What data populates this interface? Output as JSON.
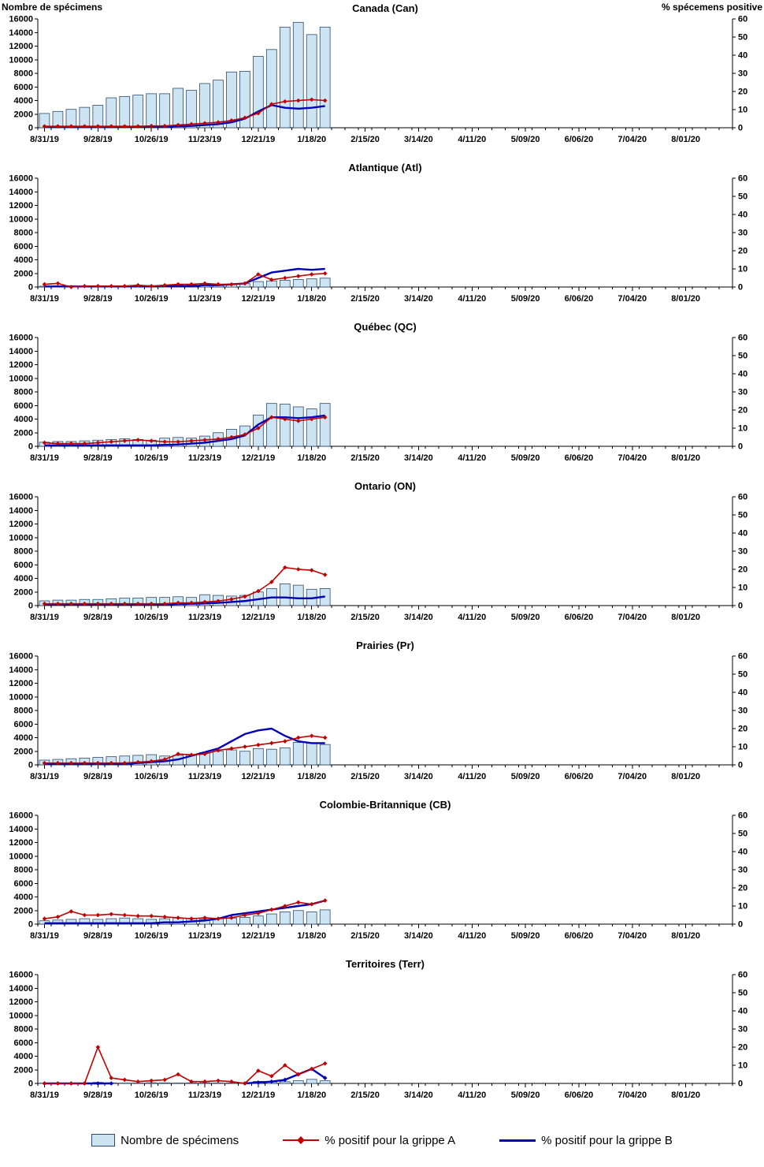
{
  "page": {
    "left_axis_header": "Nombre de spécimens",
    "right_axis_header": "% spécemens positive"
  },
  "legend": {
    "specimens": "Nombre de spécimens",
    "flu_a": "% positif pour la grippe A",
    "flu_b": "% positif pour la grippe B"
  },
  "colors": {
    "bar_fill": "#CDE4F3",
    "bar_border": "#2E4B6E",
    "flu_a_line": "#C00000",
    "flu_b_line": "#0000B8"
  },
  "axes": {
    "y_left_ticks": [
      0,
      2000,
      4000,
      6000,
      8000,
      10000,
      12000,
      14000,
      16000
    ],
    "y_right_ticks": [
      0,
      10,
      20,
      30,
      40,
      50,
      60
    ],
    "x_labels": [
      "8/31/19",
      "9/28/19",
      "10/26/19",
      "11/23/19",
      "12/21/19",
      "1/18/20",
      "2/15/20",
      "3/14/20",
      "4/11/20",
      "5/09/20",
      "6/06/20",
      "7/04/20",
      "8/01/20"
    ],
    "weeks_total": 52,
    "label_every": 4
  },
  "chart_data": [
    {
      "type": "bar+line",
      "id": "can",
      "title": "Canada (Can)",
      "y_left_max": 16000,
      "y_right_max": 60,
      "specimens": [
        2100,
        2400,
        2700,
        3000,
        3300,
        4400,
        4600,
        4800,
        5000,
        5000,
        5800,
        5500,
        6500,
        7000,
        8200,
        8300,
        10500,
        11500,
        14800,
        15500,
        13700,
        14800
      ],
      "pct_flu_a": [
        0.8,
        0.8,
        0.8,
        0.8,
        0.8,
        0.8,
        0.8,
        0.8,
        1,
        1,
        1.5,
        2,
        2.5,
        3,
        4,
        5.5,
        8,
        13,
        14.5,
        15,
        15.5,
        15
      ],
      "pct_flu_b": [
        0.5,
        0.4,
        0.4,
        0.4,
        0.4,
        0.4,
        0.5,
        0.5,
        0.5,
        0.6,
        0.8,
        1,
        1.5,
        2,
        3,
        5,
        9,
        12.5,
        11,
        10.5,
        11,
        12
      ]
    },
    {
      "type": "bar+line",
      "id": "atl",
      "title": "Atlantique (Atl)",
      "y_left_max": 16000,
      "y_right_max": 60,
      "specimens": [
        120,
        150,
        120,
        100,
        90,
        100,
        120,
        150,
        200,
        250,
        300,
        300,
        350,
        400,
        420,
        500,
        800,
        900,
        1000,
        1100,
        1200,
        1300
      ],
      "pct_flu_a": [
        1.5,
        2,
        0,
        0.5,
        0.5,
        0.5,
        0.5,
        1,
        0.5,
        1,
        1.5,
        1.5,
        2,
        1.5,
        1.5,
        2,
        7,
        4,
        5,
        6,
        7,
        7.5
      ],
      "pct_flu_b": [
        0.3,
        0.3,
        0.3,
        0.3,
        0.3,
        0.3,
        0.3,
        0.3,
        0.3,
        0.5,
        0.5,
        0.5,
        1,
        1,
        1.5,
        2,
        5,
        8,
        9,
        10,
        9.5,
        10
      ]
    },
    {
      "type": "bar+line",
      "id": "qc",
      "title": "Québec (QC)",
      "y_left_max": 16000,
      "y_right_max": 60,
      "specimens": [
        600,
        700,
        700,
        800,
        900,
        1000,
        1100,
        1000,
        900,
        1200,
        1300,
        1200,
        1500,
        2000,
        2500,
        3000,
        4600,
        6300,
        6200,
        5800,
        5500,
        6300
      ],
      "pct_flu_a": [
        2,
        1.5,
        1.5,
        1.5,
        2,
        2.5,
        3,
        3.5,
        3,
        2.5,
        2.5,
        3,
        3.5,
        4,
        5,
        6.5,
        10,
        16,
        15,
        14,
        15,
        16
      ],
      "pct_flu_b": [
        0.5,
        0.5,
        0.5,
        0.5,
        0.5,
        0.5,
        0.5,
        0.5,
        0.5,
        0.8,
        1,
        1.5,
        2,
        3,
        4,
        6,
        12,
        16,
        16,
        15.5,
        16,
        17
      ]
    },
    {
      "type": "bar+line",
      "id": "on",
      "title": "Ontario (ON)",
      "y_left_max": 16000,
      "y_right_max": 60,
      "specimens": [
        700,
        800,
        800,
        900,
        900,
        1000,
        1100,
        1100,
        1200,
        1200,
        1300,
        1200,
        1600,
        1500,
        1400,
        1500,
        2000,
        2500,
        3200,
        3000,
        2400,
        2500
      ],
      "pct_flu_a": [
        1,
        1,
        1,
        1,
        1,
        1,
        1,
        1,
        1,
        1,
        1.5,
        1.5,
        2,
        2.5,
        3.5,
        5,
        8,
        13,
        21,
        20,
        19.5,
        17
      ],
      "pct_flu_b": [
        0.5,
        0.5,
        0.5,
        0.5,
        0.5,
        0.5,
        0.5,
        0.5,
        0.5,
        0.5,
        0.8,
        1,
        1.2,
        1.5,
        2,
        2.5,
        3.5,
        4.5,
        4.5,
        4,
        4,
        5
      ]
    },
    {
      "type": "bar+line",
      "id": "pr",
      "title": "Prairies (Pr)",
      "y_left_max": 16000,
      "y_right_max": 60,
      "specimens": [
        700,
        800,
        900,
        1000,
        1100,
        1200,
        1300,
        1400,
        1500,
        1300,
        1400,
        1500,
        1800,
        2000,
        2200,
        2000,
        2400,
        2300,
        2500,
        3300,
        3200,
        3000
      ],
      "pct_flu_a": [
        1,
        1,
        1,
        1,
        1,
        1,
        1,
        1.5,
        2,
        3,
        6,
        5.5,
        6,
        8,
        9,
        10,
        11,
        12,
        13,
        15,
        16,
        15
      ],
      "pct_flu_b": [
        0.5,
        0.5,
        0.5,
        0.5,
        0.5,
        0.5,
        0.5,
        1,
        1.5,
        2,
        3,
        5,
        7,
        9,
        13,
        17,
        19,
        20,
        16,
        13,
        12,
        12
      ]
    },
    {
      "type": "bar+line",
      "id": "cb",
      "title": "Colombie-Britannique (CB)",
      "y_left_max": 16000,
      "y_right_max": 60,
      "specimens": [
        500,
        600,
        700,
        800,
        700,
        800,
        900,
        800,
        700,
        800,
        900,
        800,
        700,
        800,
        900,
        1000,
        1200,
        1500,
        1800,
        2000,
        1800,
        2100
      ],
      "pct_flu_a": [
        3,
        4,
        7,
        5,
        5,
        5.5,
        5,
        4.5,
        4.5,
        4,
        3.5,
        3,
        3.5,
        3,
        3.5,
        5,
        6,
        8,
        10,
        12,
        11,
        13
      ],
      "pct_flu_b": [
        0.5,
        0.5,
        0.5,
        0.5,
        0.5,
        0.5,
        0.5,
        0.5,
        0.5,
        1,
        1,
        1.5,
        2,
        3,
        5,
        6,
        7,
        8,
        9,
        10,
        11,
        13
      ]
    },
    {
      "type": "bar+line",
      "id": "terr",
      "title": "Territoires (Terr)",
      "y_left_max": 16000,
      "y_right_max": 60,
      "flu_b_markers": true,
      "specimens": [
        50,
        30,
        20,
        30,
        150,
        80,
        50,
        60,
        100,
        80,
        60,
        80,
        100,
        60,
        80,
        100,
        300,
        200,
        250,
        400,
        600,
        400
      ],
      "pct_flu_a": [
        0,
        0,
        0,
        0,
        20,
        3,
        2,
        1,
        1.5,
        2,
        5,
        1,
        1,
        1.5,
        1,
        0,
        7,
        4,
        10,
        5,
        8,
        11
      ],
      "pct_flu_b": [
        0,
        0,
        0,
        0,
        0,
        0,
        null,
        null,
        null,
        null,
        null,
        null,
        null,
        null,
        null,
        0,
        0.5,
        1,
        2,
        5,
        8,
        3
      ]
    }
  ]
}
